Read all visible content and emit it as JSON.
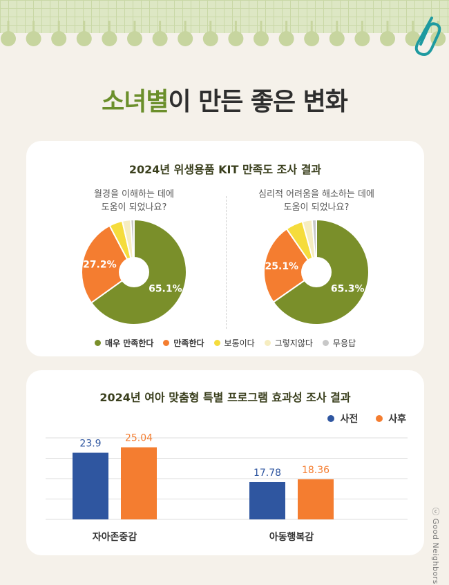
{
  "title": {
    "highlight": "소녀별",
    "rest": "이 만든 좋은 변화"
  },
  "survey": {
    "title": "2024년 위생용품 KIT 만족도 조사 결과",
    "q1": [
      "월경을 이해하는 데에",
      "도움이 되었나요?"
    ],
    "q2": [
      "심리적 어려움을 해소하는 데에",
      "도움이 되었나요?"
    ],
    "legend": [
      "매우 만족한다",
      "만족한다",
      "보통이다",
      "그렇지않다",
      "무응답"
    ]
  },
  "program": {
    "title": "2024년 여아 맞춤형 특별 프로그램 효과성 조사 결과",
    "legend": [
      "사전",
      "사후"
    ]
  },
  "credit": "ⓒ Good Neighbors",
  "colors": [
    "#7a8f2a",
    "#f47d30",
    "#f5dc3c",
    "#f6edc0",
    "#c8c8c8"
  ],
  "bar_colors": [
    "#2f56a0",
    "#f47d30"
  ],
  "chart_data": [
    {
      "type": "pie",
      "categories": [
        "매우 만족한다",
        "만족한다",
        "보통이다",
        "그렇지않다",
        "무응답"
      ],
      "values": [
        65.1,
        27.2,
        4.1,
        2.6,
        1.0
      ],
      "labels": [
        "65.1%",
        "27.2%",
        "",
        "",
        ""
      ]
    },
    {
      "type": "pie",
      "categories": [
        "매우 만족한다",
        "만족한다",
        "보통이다",
        "그렇지않다",
        "무응답"
      ],
      "values": [
        65.3,
        25.1,
        5.3,
        3.0,
        1.3
      ],
      "labels": [
        "65.3%",
        "25.1%",
        "",
        "",
        ""
      ]
    },
    {
      "type": "bar",
      "categories": [
        "자아존중감",
        "아동행복감"
      ],
      "series": [
        {
          "name": "사전",
          "values": [
            23.9,
            17.78
          ]
        },
        {
          "name": "사후",
          "values": [
            25.04,
            18.36
          ]
        }
      ],
      "value_labels": [
        [
          "23.9",
          "17.78"
        ],
        [
          "25.04",
          "18.36"
        ]
      ],
      "ylim": [
        10,
        27
      ],
      "grid": true
    }
  ]
}
